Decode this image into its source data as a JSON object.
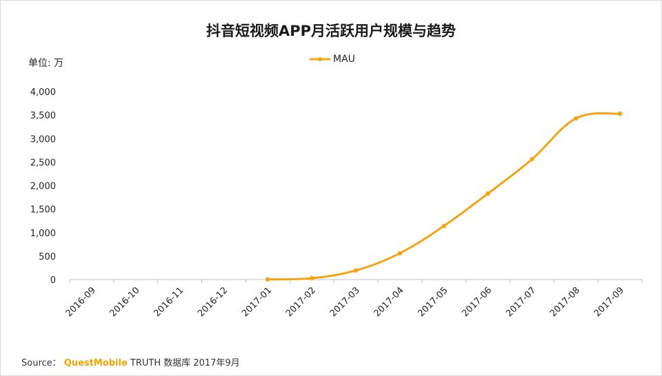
{
  "chart_data": {
    "type": "line",
    "title": "抖音短视频APP月活跃用户规模与趋势",
    "unit_label": "单位: 万",
    "xlabel": "",
    "ylabel": "",
    "ylim": [
      0,
      4000
    ],
    "yticks": [
      0,
      500,
      1000,
      1500,
      2000,
      2500,
      3000,
      3500,
      4000
    ],
    "ytick_labels": [
      "0",
      "500",
      "1,000",
      "1,500",
      "2,000",
      "2,500",
      "3,000",
      "3,500",
      "4,000"
    ],
    "categories": [
      "2016-09",
      "2016-10",
      "2016-11",
      "2016-12",
      "2017-01",
      "2017-02",
      "2017-03",
      "2017-04",
      "2017-05",
      "2017-06",
      "2017-07",
      "2017-08",
      "2017-09"
    ],
    "series": [
      {
        "name": "MAU",
        "color": "#f5a313",
        "values": [
          null,
          null,
          null,
          null,
          5,
          30,
          195,
          560,
          1140,
          1830,
          2560,
          3430,
          3530
        ]
      }
    ],
    "legend_position": "top-center"
  },
  "source": {
    "prefix": "Source：",
    "brand": "QuestMobile",
    "suffix": "TRUTH 数据库 2017年9月"
  }
}
